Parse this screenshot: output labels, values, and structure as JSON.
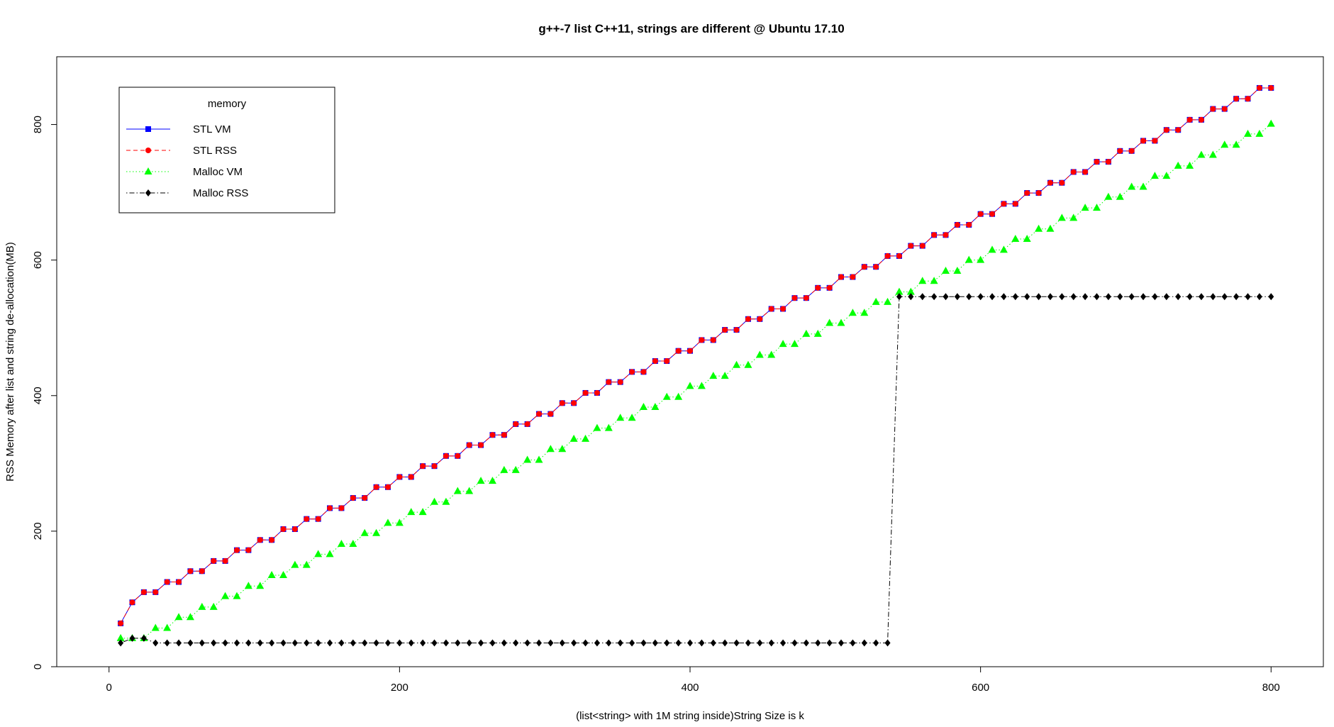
{
  "chart_data": {
    "type": "line",
    "title": "g++-7 list C++11, strings are different @ Ubuntu 17.10",
    "xlabel": "(list<string> with 1M string inside)String Size is k",
    "ylabel": "RSS Memory after list and string de-allocation(MB)",
    "xlim": [
      -36,
      836
    ],
    "ylim": [
      0,
      900
    ],
    "xticks": [
      0,
      200,
      400,
      600,
      800
    ],
    "yticks": [
      0,
      200,
      400,
      600,
      800
    ],
    "legend": {
      "title": "memory",
      "position": "top-left",
      "entries": [
        "STL VM",
        "STL RSS",
        "Malloc VM",
        "Malloc RSS"
      ]
    },
    "x": [
      8,
      16,
      24,
      32,
      40,
      48,
      56,
      64,
      72,
      80,
      88,
      96,
      104,
      112,
      120,
      128,
      136,
      144,
      152,
      160,
      168,
      176,
      184,
      192,
      200,
      208,
      216,
      224,
      232,
      240,
      248,
      256,
      264,
      272,
      280,
      288,
      296,
      304,
      312,
      320,
      328,
      336,
      344,
      352,
      360,
      368,
      376,
      384,
      392,
      400,
      408,
      416,
      424,
      432,
      440,
      448,
      456,
      464,
      472,
      480,
      488,
      496,
      504,
      512,
      520,
      528,
      536,
      544,
      552,
      560,
      568,
      576,
      584,
      592,
      600,
      608,
      616,
      624,
      632,
      640,
      648,
      656,
      664,
      672,
      680,
      688,
      696,
      704,
      712,
      720,
      728,
      736,
      744,
      752,
      760,
      768,
      776,
      784,
      792,
      800
    ],
    "series": [
      {
        "name": "STL VM",
        "color": "#0000ff",
        "line": "solid",
        "marker": "square",
        "values": [
          64,
          95,
          110,
          110,
          125,
          125,
          141,
          141,
          156,
          156,
          172,
          172,
          187,
          187,
          203,
          203,
          218,
          218,
          234,
          234,
          249,
          249,
          265,
          265,
          280,
          280,
          296,
          296,
          311,
          311,
          327,
          327,
          342,
          342,
          358,
          358,
          373,
          373,
          389,
          389,
          404,
          404,
          420,
          420,
          435,
          435,
          451,
          451,
          466,
          466,
          482,
          482,
          497,
          497,
          513,
          513,
          528,
          528,
          544,
          544,
          559,
          559,
          575,
          575,
          590,
          590,
          606,
          606,
          621,
          621,
          637,
          637,
          652,
          652,
          668,
          668,
          683,
          683,
          699,
          699,
          714,
          714,
          730,
          730,
          745,
          745,
          761,
          761,
          776,
          776,
          792,
          792,
          807,
          807,
          823,
          823,
          838,
          838,
          854,
          854
        ]
      },
      {
        "name": "STL RSS",
        "color": "#ff0000",
        "line": "dashed",
        "marker": "circle",
        "values": [
          64,
          95,
          110,
          110,
          125,
          125,
          141,
          141,
          156,
          156,
          172,
          172,
          187,
          187,
          203,
          203,
          218,
          218,
          234,
          234,
          249,
          249,
          265,
          265,
          280,
          280,
          296,
          296,
          311,
          311,
          327,
          327,
          342,
          342,
          358,
          358,
          373,
          373,
          389,
          389,
          404,
          404,
          420,
          420,
          435,
          435,
          451,
          451,
          466,
          466,
          482,
          482,
          497,
          497,
          513,
          513,
          528,
          528,
          544,
          544,
          559,
          559,
          575,
          575,
          590,
          590,
          606,
          606,
          621,
          621,
          637,
          637,
          652,
          652,
          668,
          668,
          683,
          683,
          699,
          699,
          714,
          714,
          730,
          730,
          745,
          745,
          761,
          761,
          776,
          776,
          792,
          792,
          807,
          807,
          823,
          823,
          838,
          838,
          854,
          854
        ]
      },
      {
        "name": "Malloc VM",
        "color": "#00ff00",
        "line": "dotted",
        "marker": "triangle",
        "values": [
          42,
          42,
          42,
          57,
          57,
          73,
          73,
          88,
          88,
          104,
          104,
          119,
          119,
          135,
          135,
          150,
          150,
          166,
          166,
          181,
          181,
          197,
          197,
          212,
          212,
          228,
          228,
          243,
          243,
          259,
          259,
          274,
          274,
          290,
          290,
          305,
          305,
          321,
          321,
          336,
          336,
          352,
          352,
          367,
          367,
          383,
          383,
          398,
          398,
          414,
          414,
          429,
          429,
          445,
          445,
          460,
          460,
          476,
          476,
          491,
          491,
          507,
          507,
          522,
          522,
          538,
          538,
          553,
          553,
          569,
          569,
          584,
          584,
          600,
          600,
          615,
          615,
          631,
          631,
          646,
          646,
          662,
          662,
          677,
          677,
          693,
          693,
          708,
          708,
          724,
          724,
          739,
          739,
          755,
          755,
          770,
          770,
          786,
          786,
          801
        ]
      },
      {
        "name": "Malloc RSS",
        "color": "#000000",
        "line": "dotdash",
        "marker": "diamond",
        "values": [
          35,
          42,
          42,
          35,
          35,
          35,
          35,
          35,
          35,
          35,
          35,
          35,
          35,
          35,
          35,
          35,
          35,
          35,
          35,
          35,
          35,
          35,
          35,
          35,
          35,
          35,
          35,
          35,
          35,
          35,
          35,
          35,
          35,
          35,
          35,
          35,
          35,
          35,
          35,
          35,
          35,
          35,
          35,
          35,
          35,
          35,
          35,
          35,
          35,
          35,
          35,
          35,
          35,
          35,
          35,
          35,
          35,
          35,
          35,
          35,
          35,
          35,
          35,
          35,
          35,
          35,
          35,
          546,
          546,
          546,
          546,
          546,
          546,
          546,
          546,
          546,
          546,
          546,
          546,
          546,
          546,
          546,
          546,
          546,
          546,
          546,
          546,
          546,
          546,
          546,
          546,
          546,
          546,
          546,
          546,
          546,
          546,
          546,
          546,
          546
        ]
      }
    ]
  }
}
